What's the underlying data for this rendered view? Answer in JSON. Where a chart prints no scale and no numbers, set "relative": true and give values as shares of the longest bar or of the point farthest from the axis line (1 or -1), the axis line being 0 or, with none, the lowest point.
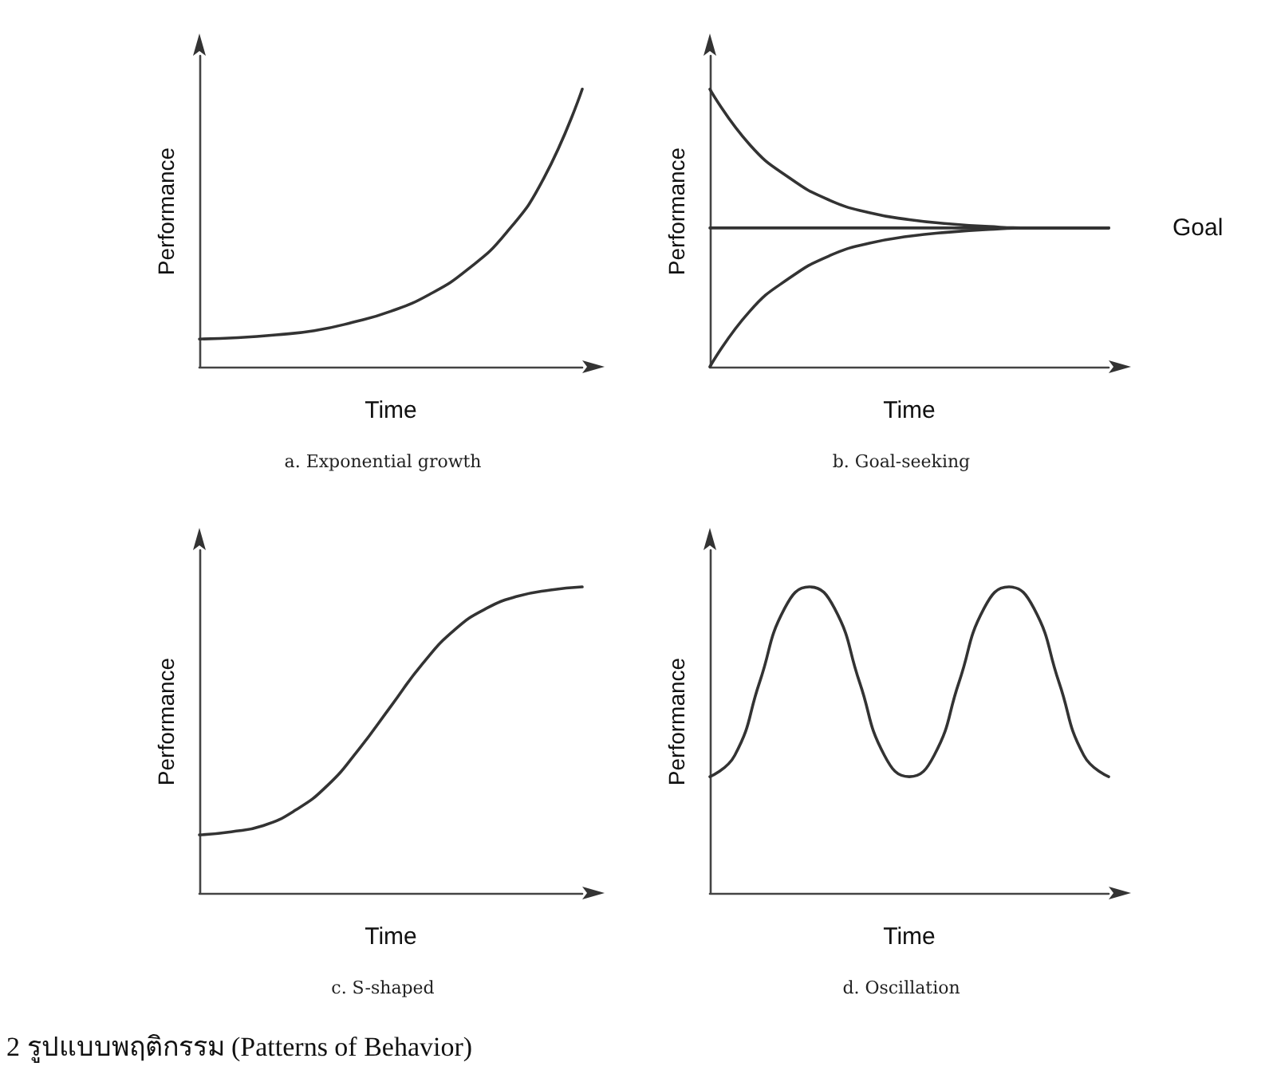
{
  "chart_data": [
    {
      "type": "line",
      "relative": true,
      "title": "a. Exponential growth",
      "xlabel": "Time",
      "ylabel": "Performance",
      "marker": "none",
      "legend": false,
      "categories": [
        null,
        null,
        null,
        null,
        null,
        null,
        null,
        null,
        null,
        null,
        null
      ],
      "series": [
        {
          "color": "#333333",
          "values": [
            0.1,
            0.105,
            0.115,
            0.13,
            0.16,
            0.2,
            0.26,
            0.35,
            0.48,
            0.68,
            1.0
          ]
        }
      ]
    },
    {
      "type": "line",
      "relative": true,
      "title": "b. Goal-seeking",
      "xlabel": "Time",
      "ylabel": "Performance",
      "marker": "none",
      "legend": false,
      "categories": [
        null,
        null,
        null,
        null,
        null,
        null,
        null,
        null,
        null,
        null,
        null
      ],
      "series": [
        {
          "color": "#333333",
          "values": [
            1.0,
            0.8,
            0.68,
            0.6,
            0.555,
            0.53,
            0.515,
            0.505,
            0.5,
            0.5,
            0.5
          ]
        },
        {
          "name": "Goal",
          "color": "#333333",
          "values": [
            0.5,
            0.5,
            0.5,
            0.5,
            0.5,
            0.5,
            0.5,
            0.5,
            0.5,
            0.5,
            0.5
          ]
        },
        {
          "color": "#333333",
          "values": [
            0.0,
            0.2,
            0.32,
            0.4,
            0.445,
            0.47,
            0.485,
            0.495,
            0.5,
            0.5,
            0.5
          ]
        }
      ]
    },
    {
      "type": "line",
      "relative": true,
      "title": "c. S-shaped",
      "xlabel": "Time",
      "ylabel": "Performance",
      "marker": "none",
      "legend": false,
      "categories": [
        null,
        null,
        null,
        null,
        null,
        null,
        null,
        null,
        null,
        null,
        null,
        null,
        null
      ],
      "series": [
        {
          "color": "#333333",
          "values": [
            0.19,
            0.2,
            0.22,
            0.27,
            0.35,
            0.47,
            0.61,
            0.75,
            0.86,
            0.93,
            0.97,
            0.99,
            1.0
          ]
        }
      ]
    },
    {
      "type": "line",
      "relative": true,
      "title": "d. Oscillation",
      "xlabel": "Time",
      "ylabel": "Performance",
      "marker": "none",
      "legend": false,
      "annotations": [
        "2 รูปแบบพฤติกรรม (Patterns of Behavior)"
      ],
      "categories": [
        null,
        null,
        null,
        null,
        null,
        null,
        null,
        null,
        null,
        null,
        null,
        null,
        null,
        null,
        null,
        null,
        null
      ],
      "series": [
        {
          "color": "#333333",
          "values": [
            0.38,
            0.45,
            0.69,
            0.93,
            1.0,
            0.93,
            0.69,
            0.45,
            0.38,
            0.45,
            0.69,
            0.93,
            1.0,
            0.93,
            0.69,
            0.45,
            0.38
          ]
        }
      ]
    }
  ]
}
